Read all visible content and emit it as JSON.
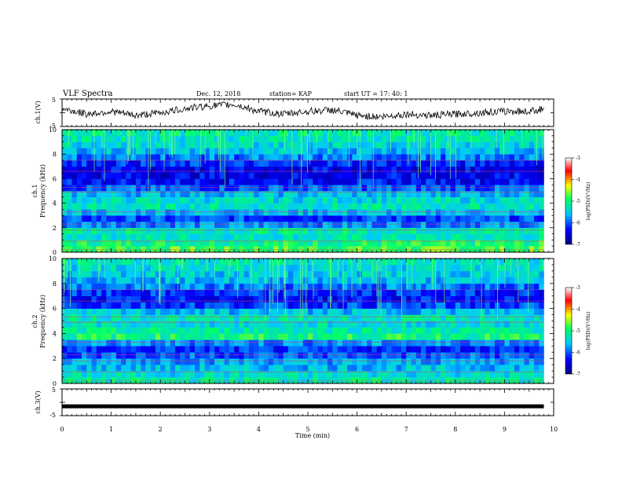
{
  "header": {
    "title": "VLF Spectra",
    "date": "Dec. 12, 2018",
    "station": "station= KAP",
    "start": "start  UT =   17: 40: 1"
  },
  "panels": {
    "ch1_wave": {
      "ylabel": "ch.1(V)",
      "yticks": [
        "5",
        "-5"
      ]
    },
    "ch1_spec": {
      "ylabel_1": "ch.1",
      "ylabel_2": "Frequency  (kHz)"
    },
    "ch2_spec": {
      "ylabel_1": "ch.2",
      "ylabel_2": "Frequency  (kHz)"
    },
    "ch3_wave": {
      "ylabel": "ch.3(V)",
      "yticks": [
        "5",
        "-5"
      ]
    }
  },
  "colorbar": {
    "label": "log(PSD)(V²/Hz)",
    "ticks": [
      "-3",
      "-4",
      "-5",
      "-6",
      "-7"
    ],
    "colors": [
      "#000080",
      "#0000ff",
      "#00ffff",
      "#00ff00",
      "#ffff00",
      "#ff0000",
      "#ffffff"
    ]
  },
  "chart_data": [
    {
      "type": "line",
      "panel": "ch.1 waveform",
      "ylabel": "ch.1(V)",
      "ylim": [
        -5,
        5
      ],
      "x": [
        0,
        0.5,
        1,
        1.5,
        2,
        2.5,
        3,
        3.5,
        4,
        4.5,
        5,
        5.5,
        6,
        6.5,
        7,
        7.5,
        8,
        8.5,
        9,
        9.5,
        9.8
      ],
      "values": [
        1.5,
        -0.5,
        0.5,
        -1.0,
        0.0,
        1.5,
        2.5,
        3.0,
        0.5,
        -0.5,
        0.5,
        1.0,
        -1.0,
        -1.5,
        -0.5,
        -1.0,
        -0.5,
        0.0,
        0.5,
        0.5,
        1.5
      ]
    },
    {
      "type": "heatmap",
      "panel": "ch.1 spectrogram",
      "ylabel": "ch.1 Frequency (kHz)",
      "xlim": [
        0,
        10
      ],
      "ylim": [
        0,
        10
      ],
      "yticks": [
        "0",
        "2",
        "4",
        "6",
        "8",
        "10"
      ],
      "zlabel": "log(PSD)(V²/Hz)",
      "zlim": [
        -7,
        -3
      ],
      "freq_kHz": [
        0.5,
        1.0,
        1.5,
        2.0,
        2.5,
        3.0,
        3.5,
        4.0,
        4.5,
        5.0,
        5.5,
        6.0,
        6.5,
        7.0,
        7.5,
        8.0,
        8.5,
        9.0,
        9.5,
        10.0
      ],
      "typical_log_psd": [
        -4.8,
        -5.0,
        -5.3,
        -5.2,
        -5.8,
        -6.1,
        -5.6,
        -5.3,
        -5.4,
        -5.6,
        -6.0,
        -6.3,
        -6.4,
        -6.4,
        -6.2,
        -5.9,
        -5.6,
        -5.4,
        -5.3,
        -5.2
      ]
    },
    {
      "type": "heatmap",
      "panel": "ch.2 spectrogram",
      "ylabel": "ch.2 Frequency (kHz)",
      "xlim": [
        0,
        10
      ],
      "ylim": [
        0,
        10
      ],
      "yticks": [
        "0",
        "2",
        "4",
        "6",
        "8",
        "10"
      ],
      "zlabel": "log(PSD)(V²/Hz)",
      "zlim": [
        -7,
        -3
      ],
      "freq_kHz": [
        0.5,
        1.0,
        1.5,
        2.0,
        2.5,
        3.0,
        3.5,
        4.0,
        4.5,
        5.0,
        5.5,
        6.0,
        6.5,
        7.0,
        7.5,
        8.0,
        8.5,
        9.0,
        9.5,
        10.0
      ],
      "typical_log_psd": [
        -5.2,
        -5.4,
        -5.6,
        -5.7,
        -6.0,
        -6.2,
        -5.8,
        -5.0,
        -5.2,
        -5.4,
        -5.3,
        -5.6,
        -6.1,
        -6.3,
        -6.2,
        -5.9,
        -5.6,
        -5.5,
        -5.4,
        -5.3
      ]
    },
    {
      "type": "line",
      "panel": "ch.3 waveform",
      "ylabel": "ch.3(V)",
      "xlabel": "Time  (min)",
      "xlim": [
        0,
        10
      ],
      "ylim": [
        -5,
        5
      ],
      "xticks": [
        "0",
        "1",
        "2",
        "3",
        "4",
        "5",
        "6",
        "7",
        "8",
        "9",
        "10"
      ],
      "x": [
        0,
        9.8
      ],
      "values": [
        -1.5,
        -1.5
      ]
    }
  ]
}
